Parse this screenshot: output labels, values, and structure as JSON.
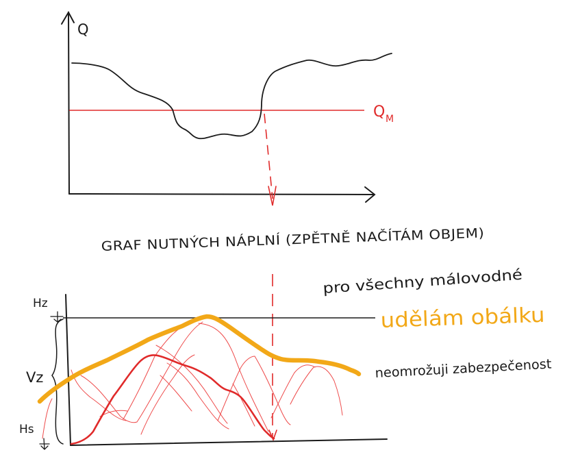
{
  "top_graph": {
    "y_axis_label": "Q",
    "threshold_label": "Q",
    "threshold_subscript": "M"
  },
  "title": "GRAF NUTNÝCH NÁPLNÍ (ZPĚTNĚ NAČÍTÁM OBJEM)",
  "notes": {
    "line1": "pro všechny málovodné",
    "line2": "udělám obálku",
    "line3": "neomrožuji zabezpečenost"
  },
  "bottom_graph": {
    "label_hz": "Hz",
    "label_vz": "Vz",
    "label_hs": "Hs"
  },
  "colors": {
    "ink": "#1a1a1a",
    "red": "#e02a2a",
    "light_red": "#ee4a4a",
    "orange": "#f2a818"
  }
}
